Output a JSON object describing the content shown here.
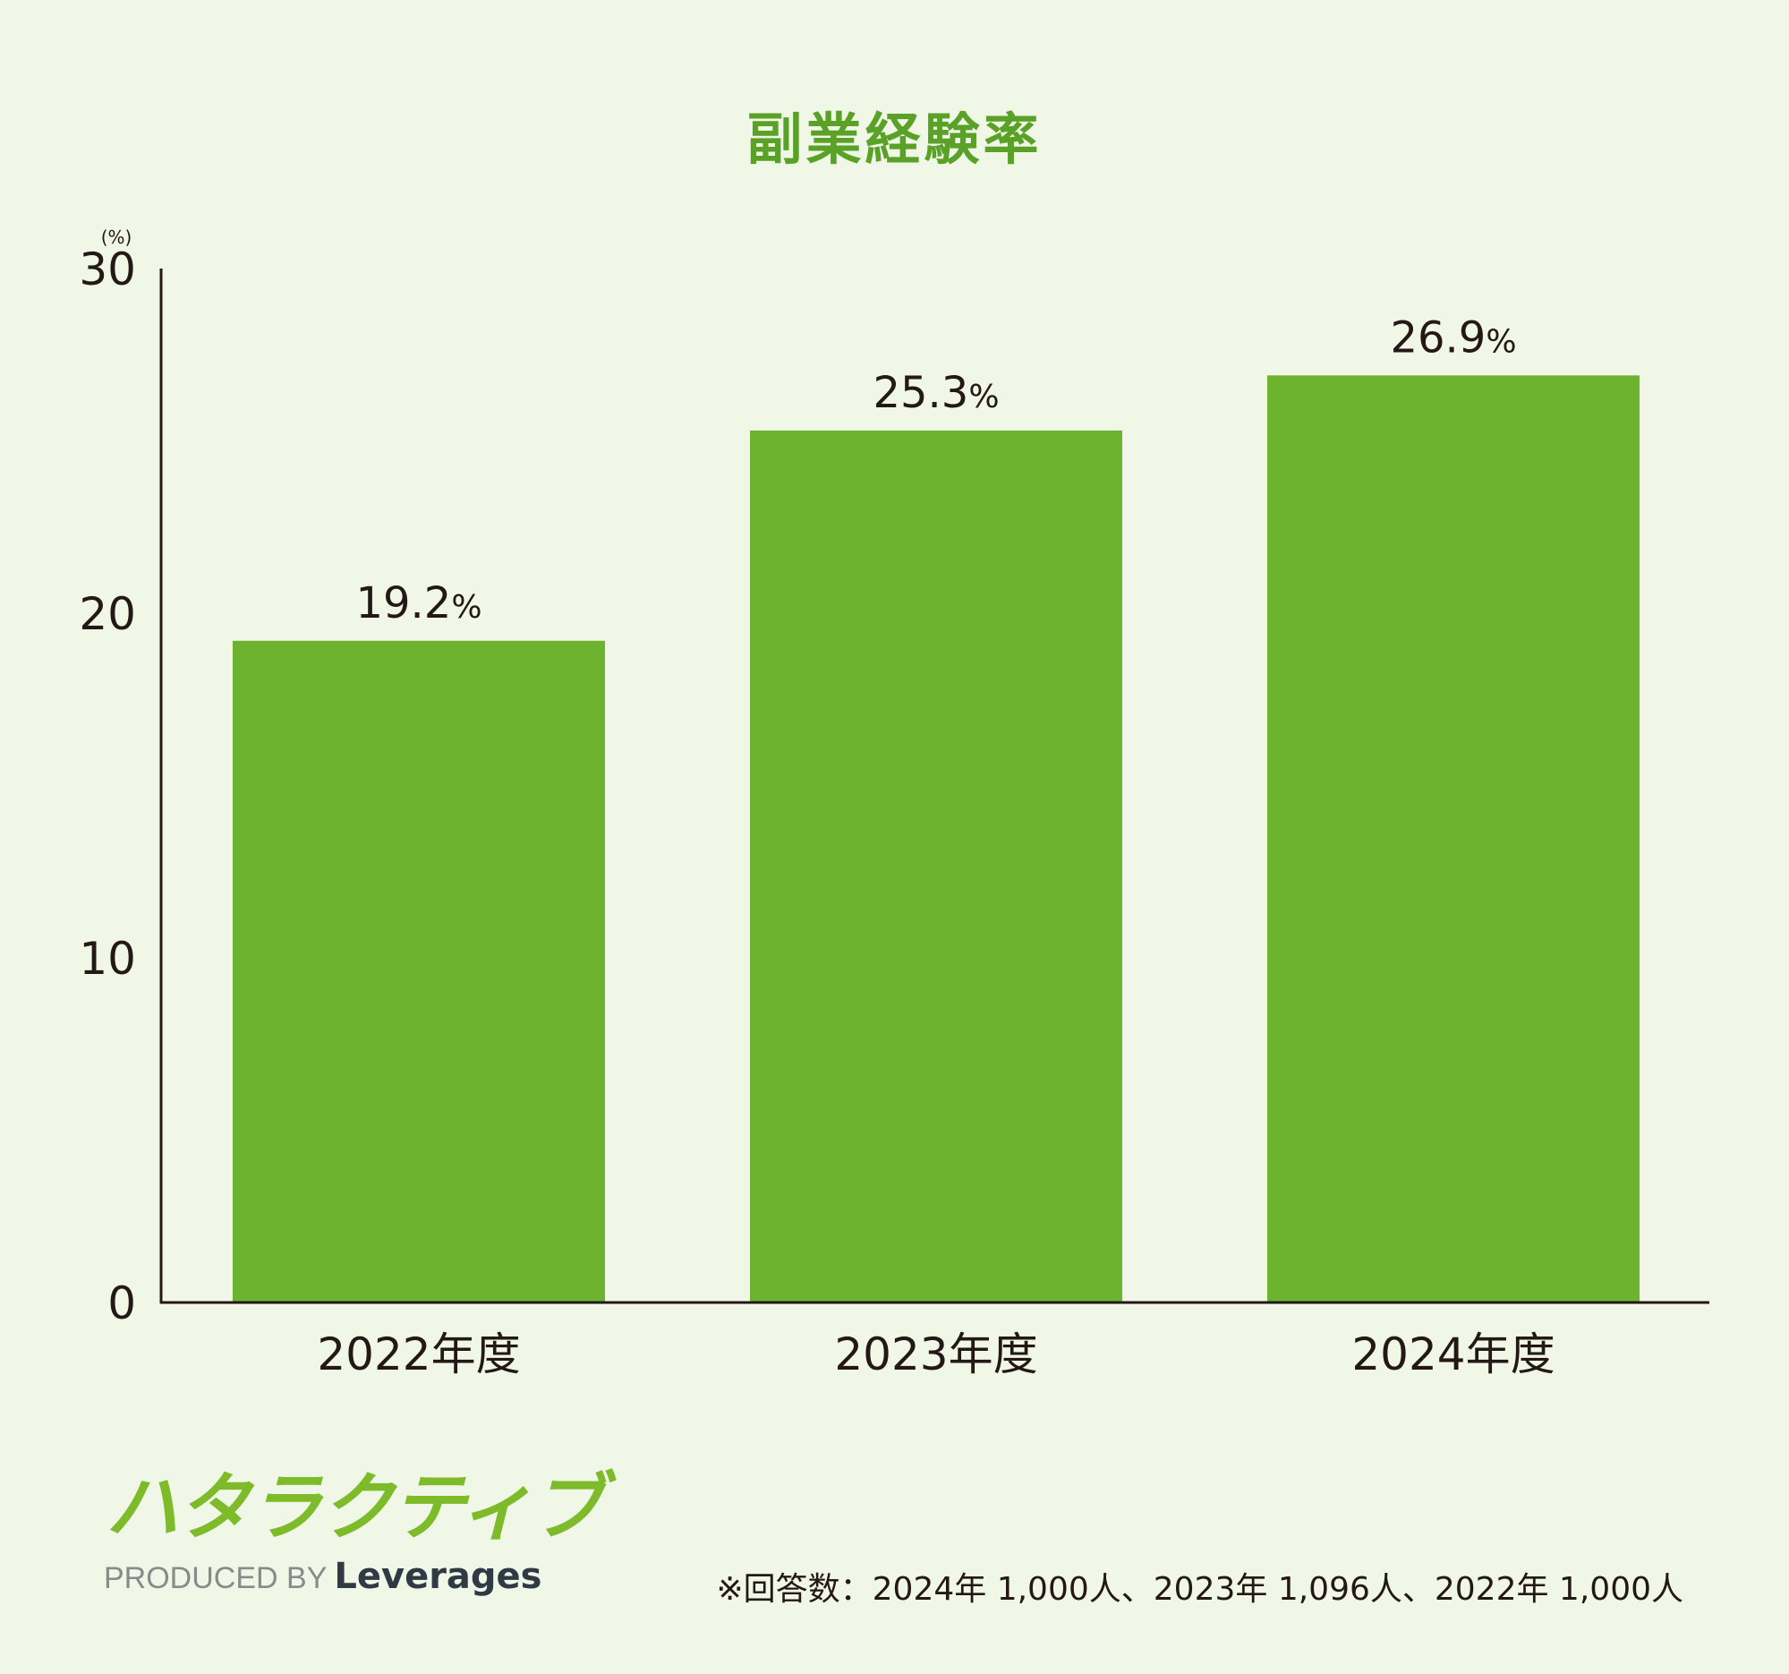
{
  "chart_data": {
    "type": "bar",
    "title": "副業経験率",
    "unit_label": "(%)",
    "categories": [
      "2022年度",
      "2023年度",
      "2024年度"
    ],
    "values": [
      19.2,
      25.3,
      26.9
    ],
    "value_labels": [
      "19.2",
      "25.3",
      "26.9"
    ],
    "value_suffix": "%",
    "yticks": [
      "0",
      "10",
      "20",
      "30"
    ],
    "ylim": [
      0,
      30
    ],
    "grid": false,
    "bar_color": "#6db32f"
  },
  "logo": {
    "mark_text": "ハタラクティブ",
    "produced_by": "PRODUCED BY",
    "brand": "Leverages",
    "mark_color": "#7dbb2a",
    "accent_color": "#ef8a1c"
  },
  "footnote": "※回答数：2024年 1,000人、2023年 1,096人、2022年 1,000人"
}
